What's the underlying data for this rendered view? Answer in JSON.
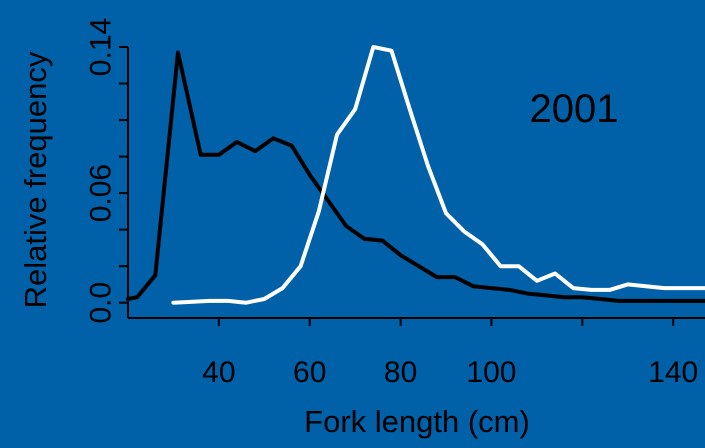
{
  "chart_data": {
    "type": "line",
    "title": "",
    "xlabel": "Fork length (cm)",
    "ylabel": "Relative frequency",
    "annotation": "2001",
    "xlim": [
      20,
      147
    ],
    "ylim": [
      -0.004,
      0.14
    ],
    "x_ticks": [
      40,
      60,
      80,
      100,
      140
    ],
    "x_minor_ticks": [
      120
    ],
    "y_ticks": [
      0.0,
      0.06,
      0.14
    ],
    "y_tick_labels": [
      "0.0",
      "0.06",
      "0.14"
    ],
    "y_minor_ticks": [
      0.02,
      0.04,
      0.08,
      0.1,
      0.12
    ],
    "grid": false,
    "legend": "none",
    "background_color": "#0061A8",
    "series": [
      {
        "color": "#000000",
        "x": [
          20,
          22,
          26,
          31,
          36,
          40,
          44,
          48,
          52,
          56,
          60,
          64,
          68,
          72,
          76,
          80,
          84,
          88,
          92,
          96,
          100,
          104,
          108,
          112,
          116,
          120,
          124,
          128,
          132,
          136,
          140,
          144,
          147
        ],
        "y": [
          0.002,
          0.003,
          0.015,
          0.137,
          0.081,
          0.081,
          0.088,
          0.083,
          0.09,
          0.086,
          0.07,
          0.056,
          0.042,
          0.035,
          0.034,
          0.026,
          0.02,
          0.014,
          0.014,
          0.009,
          0.008,
          0.007,
          0.005,
          0.004,
          0.003,
          0.003,
          0.002,
          0.001,
          0.001,
          0.001,
          0.001,
          0.001,
          0.001
        ]
      },
      {
        "color": "#FFFFFF",
        "x": [
          30,
          38,
          42,
          46,
          50,
          54,
          58,
          62,
          66,
          70,
          74,
          78,
          82,
          86,
          90,
          94,
          98,
          102,
          106,
          110,
          114,
          118,
          122,
          126,
          130,
          134,
          138,
          142,
          147
        ],
        "y": [
          0.0,
          0.001,
          0.001,
          0.0,
          0.002,
          0.008,
          0.02,
          0.05,
          0.092,
          0.106,
          0.14,
          0.138,
          0.106,
          0.075,
          0.049,
          0.039,
          0.032,
          0.02,
          0.02,
          0.012,
          0.016,
          0.008,
          0.007,
          0.007,
          0.01,
          0.009,
          0.008,
          0.008,
          0.008
        ]
      }
    ]
  }
}
